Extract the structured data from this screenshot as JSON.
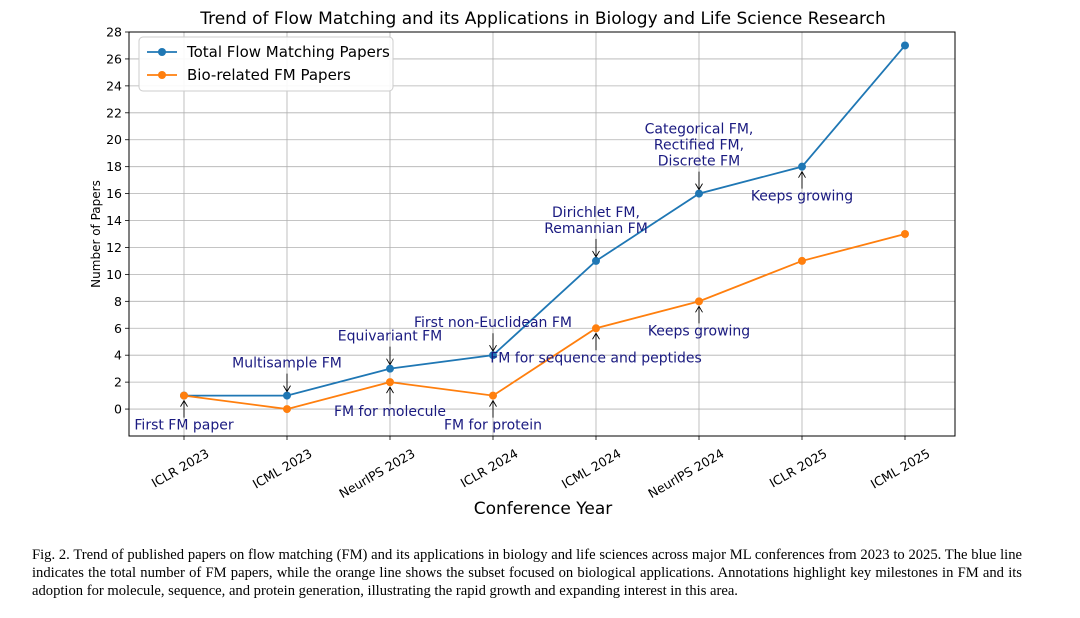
{
  "chart_data": {
    "type": "line",
    "title": "Trend of Flow Matching and its Applications in Biology and Life Science Research",
    "xlabel": "Conference Year",
    "ylabel": "Number of Papers",
    "categories": [
      "ICLR 2023",
      "ICML 2023",
      "NeurIPS 2023",
      "ICLR 2024",
      "ICML 2024",
      "NeurIPS 2024",
      "ICLR 2025",
      "ICML 2025"
    ],
    "ylim": [
      -2,
      28
    ],
    "yticks": [
      0,
      2,
      4,
      6,
      8,
      10,
      12,
      14,
      16,
      18,
      20,
      22,
      24,
      26,
      28
    ],
    "grid": true,
    "legend_position": "top-left",
    "series": [
      {
        "name": "Total Flow Matching Papers",
        "color": "#1f77b4",
        "values": [
          1,
          1,
          3,
          4,
          11,
          16,
          18,
          27
        ]
      },
      {
        "name": "Bio-related FM Papers",
        "color": "#ff7f0e",
        "values": [
          1,
          0,
          2,
          1,
          6,
          8,
          11,
          13
        ]
      }
    ],
    "annotations": [
      {
        "lines": [
          "First FM paper"
        ],
        "x_index": 0,
        "y": 1,
        "position": "below"
      },
      {
        "lines": [
          "Multisample FM"
        ],
        "x_index": 1,
        "y": 1,
        "position": "above"
      },
      {
        "lines": [
          "Equivariant FM"
        ],
        "x_index": 2,
        "y": 3,
        "position": "above"
      },
      {
        "lines": [
          "FM for molecule"
        ],
        "x_index": 2,
        "y": 2,
        "position": "below"
      },
      {
        "lines": [
          "First non-Euclidean FM"
        ],
        "x_index": 3,
        "y": 4,
        "position": "above"
      },
      {
        "lines": [
          "FM for protein"
        ],
        "x_index": 3,
        "y": 1,
        "position": "below"
      },
      {
        "lines": [
          "Dirichlet FM,",
          "Remannian FM"
        ],
        "x_index": 4,
        "y": 11,
        "position": "above"
      },
      {
        "lines": [
          "FM for sequence and peptides"
        ],
        "x_index": 4,
        "y": 6,
        "position": "below"
      },
      {
        "lines": [
          "Categorical FM,",
          "Rectified FM,",
          "Discrete FM"
        ],
        "x_index": 5,
        "y": 16,
        "position": "above"
      },
      {
        "lines": [
          "Keeps growing"
        ],
        "x_index": 5,
        "y": 8,
        "position": "below"
      },
      {
        "lines": [
          "Keeps growing"
        ],
        "x_index": 6,
        "y": 18,
        "position": "below"
      }
    ]
  },
  "caption": "Fig. 2.  Trend of published papers on flow matching (FM) and its applications in biology and life sciences across major ML conferences from 2023 to 2025. The blue line indicates the total number of FM papers, while the orange line shows the subset focused on biological applications. Annotations highlight key milestones in FM and its adoption for molecule, sequence, and protein generation, illustrating the rapid growth and expanding interest in this area."
}
